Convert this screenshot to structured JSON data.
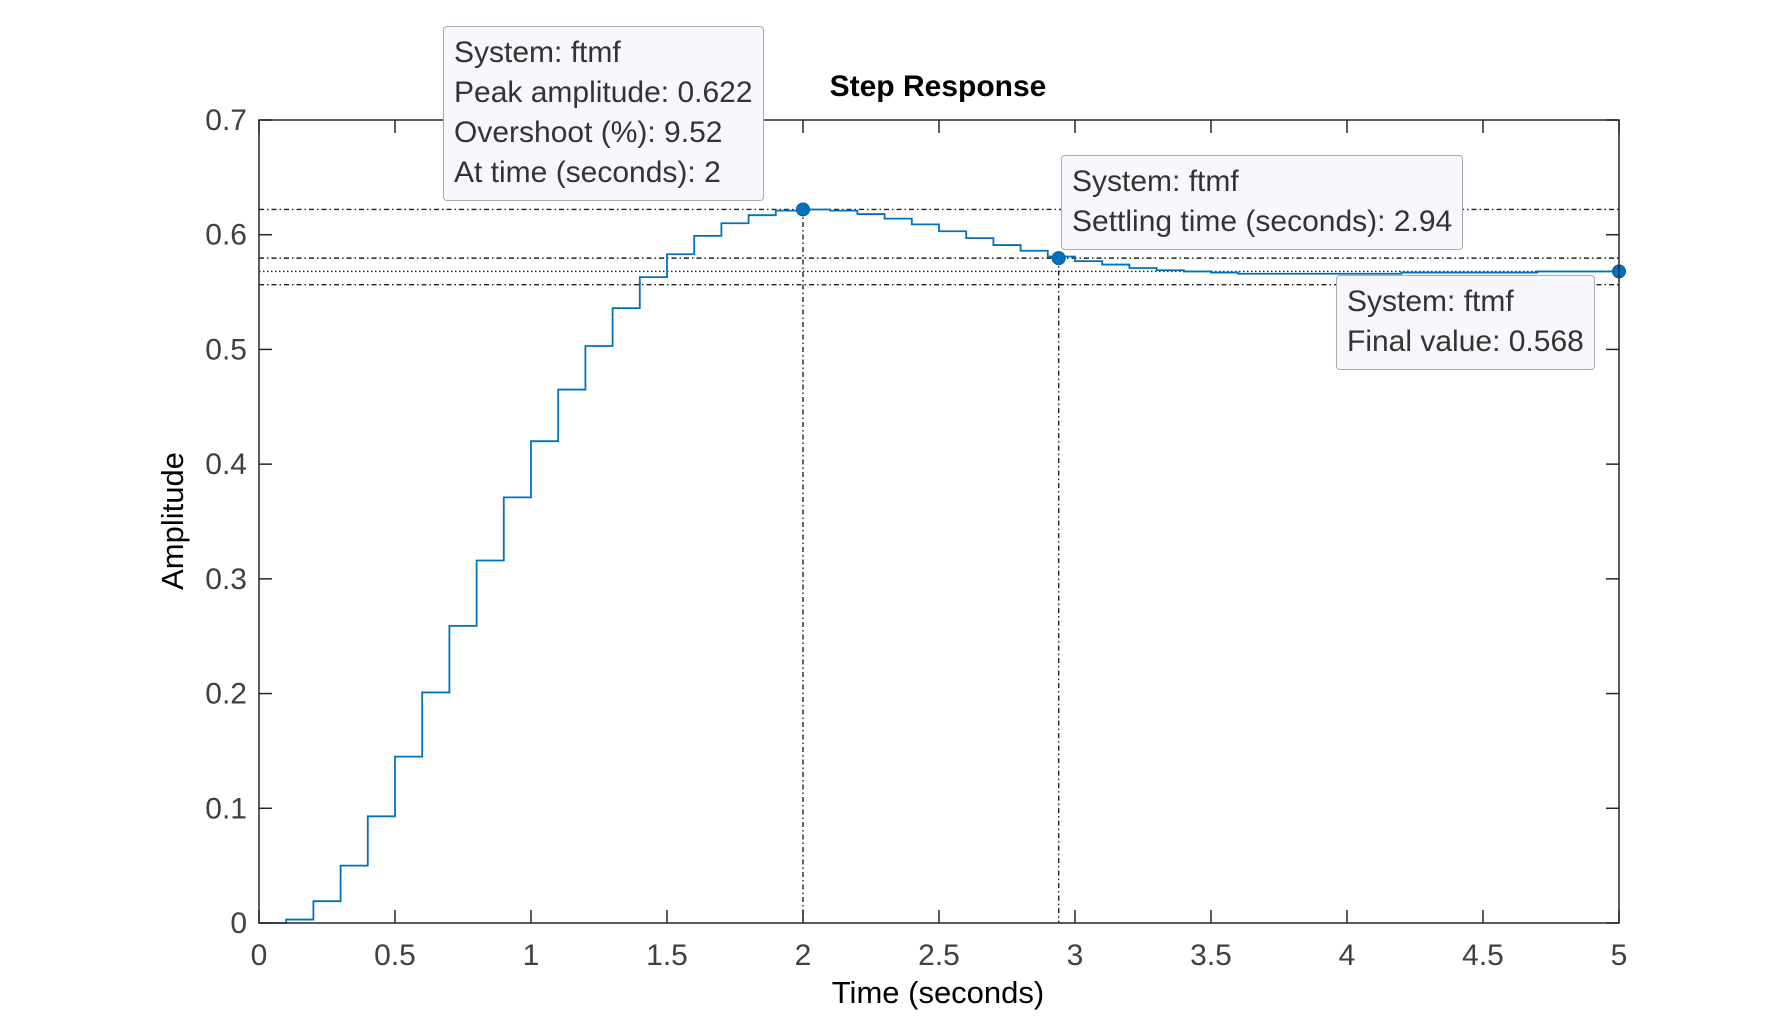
{
  "chart_data": {
    "type": "line",
    "title": "Step Response",
    "xlabel": "Time (seconds)",
    "ylabel": "Amplitude",
    "xlim": [
      0,
      5
    ],
    "ylim": [
      0,
      0.7
    ],
    "xticks": [
      "0",
      "0.5",
      "1",
      "1.5",
      "2",
      "2.5",
      "3",
      "3.5",
      "4",
      "4.5",
      "5"
    ],
    "yticks": [
      "0",
      "0.1",
      "0.2",
      "0.3",
      "0.4",
      "0.5",
      "0.6",
      "0.7"
    ],
    "grid": false,
    "line_color": "#0072BD",
    "series": [
      {
        "step": true,
        "x": [
          0,
          0.1,
          0.2,
          0.3,
          0.4,
          0.5,
          0.6,
          0.7,
          0.8,
          0.9,
          1.0,
          1.1,
          1.2,
          1.3,
          1.4,
          1.5,
          1.6,
          1.7,
          1.8,
          1.9,
          2.0,
          2.1,
          2.2,
          2.3,
          2.4,
          2.5,
          2.6,
          2.7,
          2.8,
          2.9,
          3.0,
          3.1,
          3.2,
          3.3,
          3.4,
          3.5,
          3.6,
          3.7,
          3.8,
          3.9,
          4.0,
          4.1,
          4.2,
          4.3,
          4.4,
          4.5,
          4.6,
          4.7,
          4.8,
          4.9,
          5.0
        ],
        "y": [
          0,
          0.003,
          0.019,
          0.05,
          0.093,
          0.145,
          0.201,
          0.259,
          0.316,
          0.371,
          0.42,
          0.465,
          0.503,
          0.536,
          0.563,
          0.583,
          0.599,
          0.61,
          0.617,
          0.621,
          0.622,
          0.621,
          0.618,
          0.614,
          0.609,
          0.603,
          0.597,
          0.591,
          0.586,
          0.581,
          0.577,
          0.574,
          0.571,
          0.569,
          0.568,
          0.567,
          0.566,
          0.566,
          0.566,
          0.566,
          0.566,
          0.566,
          0.567,
          0.567,
          0.567,
          0.567,
          0.567,
          0.568,
          0.568,
          0.568,
          0.568
        ]
      }
    ],
    "reference_lines": {
      "peak_level": 0.622,
      "settling_upper": 0.5796,
      "final_level": 0.568,
      "settling_lower": 0.5564,
      "peak_time": 2,
      "settling_time": 2.94
    },
    "markers": [
      {
        "x": 2,
        "y": 0.622
      },
      {
        "x": 2.94,
        "y": 0.5796
      },
      {
        "x": 5,
        "y": 0.568
      }
    ]
  },
  "datatips": {
    "peak": [
      "System: ftmf",
      "Peak amplitude: 0.622",
      "Overshoot (%): 9.52",
      "At time (seconds): 2"
    ],
    "settling": [
      "System: ftmf",
      "Settling time (seconds): 2.94"
    ],
    "final": [
      "System: ftmf",
      "Final value: 0.568"
    ]
  }
}
